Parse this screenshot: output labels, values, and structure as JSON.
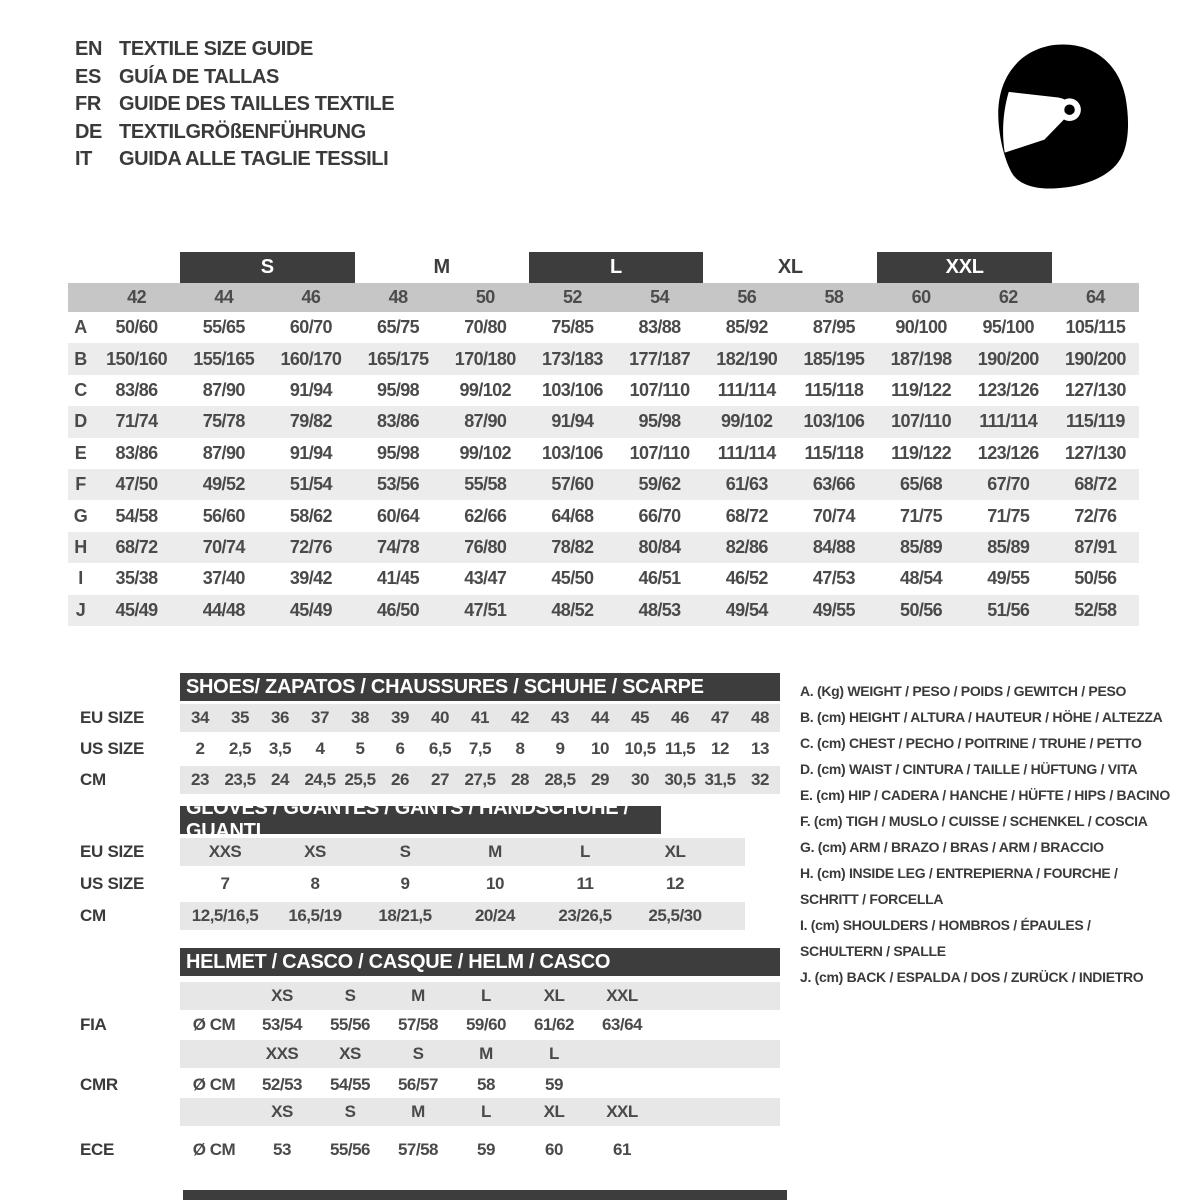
{
  "languages": [
    {
      "code": "EN",
      "label": "TEXTILE SIZE GUIDE"
    },
    {
      "code": "ES",
      "label": "GUÍA DE TALLAS"
    },
    {
      "code": "FR",
      "label": "GUIDE DES TAILLES TEXTILE"
    },
    {
      "code": "DE",
      "label": "TEXTILGRÖßENFÜHRUNG"
    },
    {
      "code": "IT",
      "label": "GUIDA ALLE TAGLIE TESSILI"
    }
  ],
  "icons": {
    "helmet": "racing-helmet-icon"
  },
  "colors": {
    "dark_bar": "#3d3d3d",
    "numeric_band": "#c6c6c6",
    "row_stripe": "#ececec",
    "section_band": "#e7e7e7",
    "text": "#4a4a4a"
  },
  "size_table": {
    "groups": [
      {
        "label": "S",
        "boxed": true,
        "col": 2,
        "span": 2
      },
      {
        "label": "M",
        "boxed": false,
        "col": 4,
        "span": 2
      },
      {
        "label": "L",
        "boxed": true,
        "col": 6,
        "span": 2
      },
      {
        "label": "XL",
        "boxed": false,
        "col": 8,
        "span": 2
      },
      {
        "label": "XXL",
        "boxed": true,
        "col": 10,
        "span": 2
      }
    ],
    "columns": [
      "42",
      "44",
      "46",
      "48",
      "50",
      "52",
      "54",
      "56",
      "58",
      "60",
      "62",
      "64"
    ],
    "rows": [
      {
        "key": "A",
        "values": [
          "50/60",
          "55/65",
          "60/70",
          "65/75",
          "70/80",
          "75/85",
          "83/88",
          "85/92",
          "87/95",
          "90/100",
          "95/100",
          "105/115"
        ]
      },
      {
        "key": "B",
        "values": [
          "150/160",
          "155/165",
          "160/170",
          "165/175",
          "170/180",
          "173/183",
          "177/187",
          "182/190",
          "185/195",
          "187/198",
          "190/200",
          "190/200"
        ]
      },
      {
        "key": "C",
        "values": [
          "83/86",
          "87/90",
          "91/94",
          "95/98",
          "99/102",
          "103/106",
          "107/110",
          "111/114",
          "115/118",
          "119/122",
          "123/126",
          "127/130"
        ]
      },
      {
        "key": "D",
        "values": [
          "71/74",
          "75/78",
          "79/82",
          "83/86",
          "87/90",
          "91/94",
          "95/98",
          "99/102",
          "103/106",
          "107/110",
          "111/114",
          "115/119"
        ]
      },
      {
        "key": "E",
        "values": [
          "83/86",
          "87/90",
          "91/94",
          "95/98",
          "99/102",
          "103/106",
          "107/110",
          "111/114",
          "115/118",
          "119/122",
          "123/126",
          "127/130"
        ]
      },
      {
        "key": "F",
        "values": [
          "47/50",
          "49/52",
          "51/54",
          "53/56",
          "55/58",
          "57/60",
          "59/62",
          "61/63",
          "63/66",
          "65/68",
          "67/70",
          "68/72"
        ]
      },
      {
        "key": "G",
        "values": [
          "54/58",
          "56/60",
          "58/62",
          "60/64",
          "62/66",
          "64/68",
          "66/70",
          "68/72",
          "70/74",
          "71/75",
          "71/75",
          "72/76"
        ]
      },
      {
        "key": "H",
        "values": [
          "68/72",
          "70/74",
          "72/76",
          "74/78",
          "76/80",
          "78/82",
          "80/84",
          "82/86",
          "84/88",
          "85/89",
          "85/89",
          "87/91"
        ]
      },
      {
        "key": "I",
        "values": [
          "35/38",
          "37/40",
          "39/42",
          "41/45",
          "43/47",
          "45/50",
          "46/51",
          "46/52",
          "47/53",
          "48/54",
          "49/55",
          "50/56"
        ]
      },
      {
        "key": "J",
        "values": [
          "45/49",
          "44/48",
          "45/49",
          "46/50",
          "47/51",
          "48/52",
          "48/53",
          "49/54",
          "49/55",
          "50/56",
          "51/56",
          "52/58"
        ]
      }
    ]
  },
  "shoes": {
    "title": "SHOES/ ZAPATOS / CHAUSSURES / SCHUHE / SCARPE",
    "rows": [
      {
        "label": "EU SIZE",
        "values": [
          "34",
          "35",
          "36",
          "37",
          "38",
          "39",
          "40",
          "41",
          "42",
          "43",
          "44",
          "45",
          "46",
          "47",
          "48"
        ]
      },
      {
        "label": "US SIZE",
        "values": [
          "2",
          "2,5",
          "3,5",
          "4",
          "5",
          "6",
          "6,5",
          "7,5",
          "8",
          "9",
          "10",
          "10,5",
          "11,5",
          "12",
          "13"
        ]
      },
      {
        "label": "CM",
        "values": [
          "23",
          "23,5",
          "24",
          "24,5",
          "25,5",
          "26",
          "27",
          "27,5",
          "28",
          "28,5",
          "29",
          "30",
          "30,5",
          "31,5",
          "32"
        ]
      }
    ]
  },
  "gloves": {
    "title": "GLOVES / GUANTES / GANTS / HANDSCHUHE / GUANTI",
    "rows": [
      {
        "label": "EU SIZE",
        "values": [
          "XXS",
          "XS",
          "S",
          "M",
          "L",
          "XL"
        ]
      },
      {
        "label": "US SIZE",
        "values": [
          "7",
          "8",
          "9",
          "10",
          "11",
          "12"
        ]
      },
      {
        "label": "CM",
        "values": [
          "12,5/16,5",
          "16,5/19",
          "18/21,5",
          "20/24",
          "23/26,5",
          "25,5/30"
        ]
      }
    ]
  },
  "helmet": {
    "title": "HELMET / CASCO / CASQUE / HELM / CASCO",
    "standards": [
      {
        "label": "FIA",
        "unit": "Ø CM",
        "sizes": [
          "XS",
          "S",
          "M",
          "L",
          "XL",
          "XXL"
        ],
        "values": [
          "53/54",
          "55/56",
          "57/58",
          "59/60",
          "61/62",
          "63/64"
        ]
      },
      {
        "label": "CMR",
        "unit": "Ø CM",
        "sizes": [
          "XXS",
          "XS",
          "S",
          "M",
          "L",
          ""
        ],
        "values": [
          "52/53",
          "54/55",
          "56/57",
          "58",
          "59",
          ""
        ]
      },
      {
        "label": "ECE",
        "unit": "Ø CM",
        "sizes": [
          "XS",
          "S",
          "M",
          "L",
          "XL",
          "XXL"
        ],
        "values": [
          "53",
          "55/56",
          "57/58",
          "59",
          "60",
          "61"
        ]
      }
    ]
  },
  "legend": {
    "items": [
      [
        "A. (Kg) WEIGHT / PESO / POIDS / GEWITCH / PESO"
      ],
      [
        "B. (cm) HEIGHT / ALTURA / HAUTEUR / HÖHE / ALTEZZA"
      ],
      [
        "C. (cm) CHEST / PECHO / POITRINE / TRUHE / PETTO"
      ],
      [
        "D. (cm) WAIST / CINTURA / TAILLE / HÜFTUNG / VITA"
      ],
      [
        "E. (cm) HIP / CADERA / HANCHE / HÜFTE / HIPS / BACINO"
      ],
      [
        "F. (cm) TIGH / MUSLO / CUISSE / SCHENKEL / COSCIA"
      ],
      [
        "G. (cm) ARM / BRAZO / BRAS / ARM / BRACCIO"
      ],
      [
        "H. (cm) INSIDE LEG / ENTREPIERNA / FOURCHE /",
        "SCHRITT / FORCELLA"
      ],
      [
        "I. (cm) SHOULDERS / HOMBROS / ÉPAULES /",
        "SCHULTERN / SPALLE"
      ],
      [
        "J. (cm) BACK / ESPALDA / DOS / ZURÜCK / INDIETRO"
      ]
    ]
  }
}
